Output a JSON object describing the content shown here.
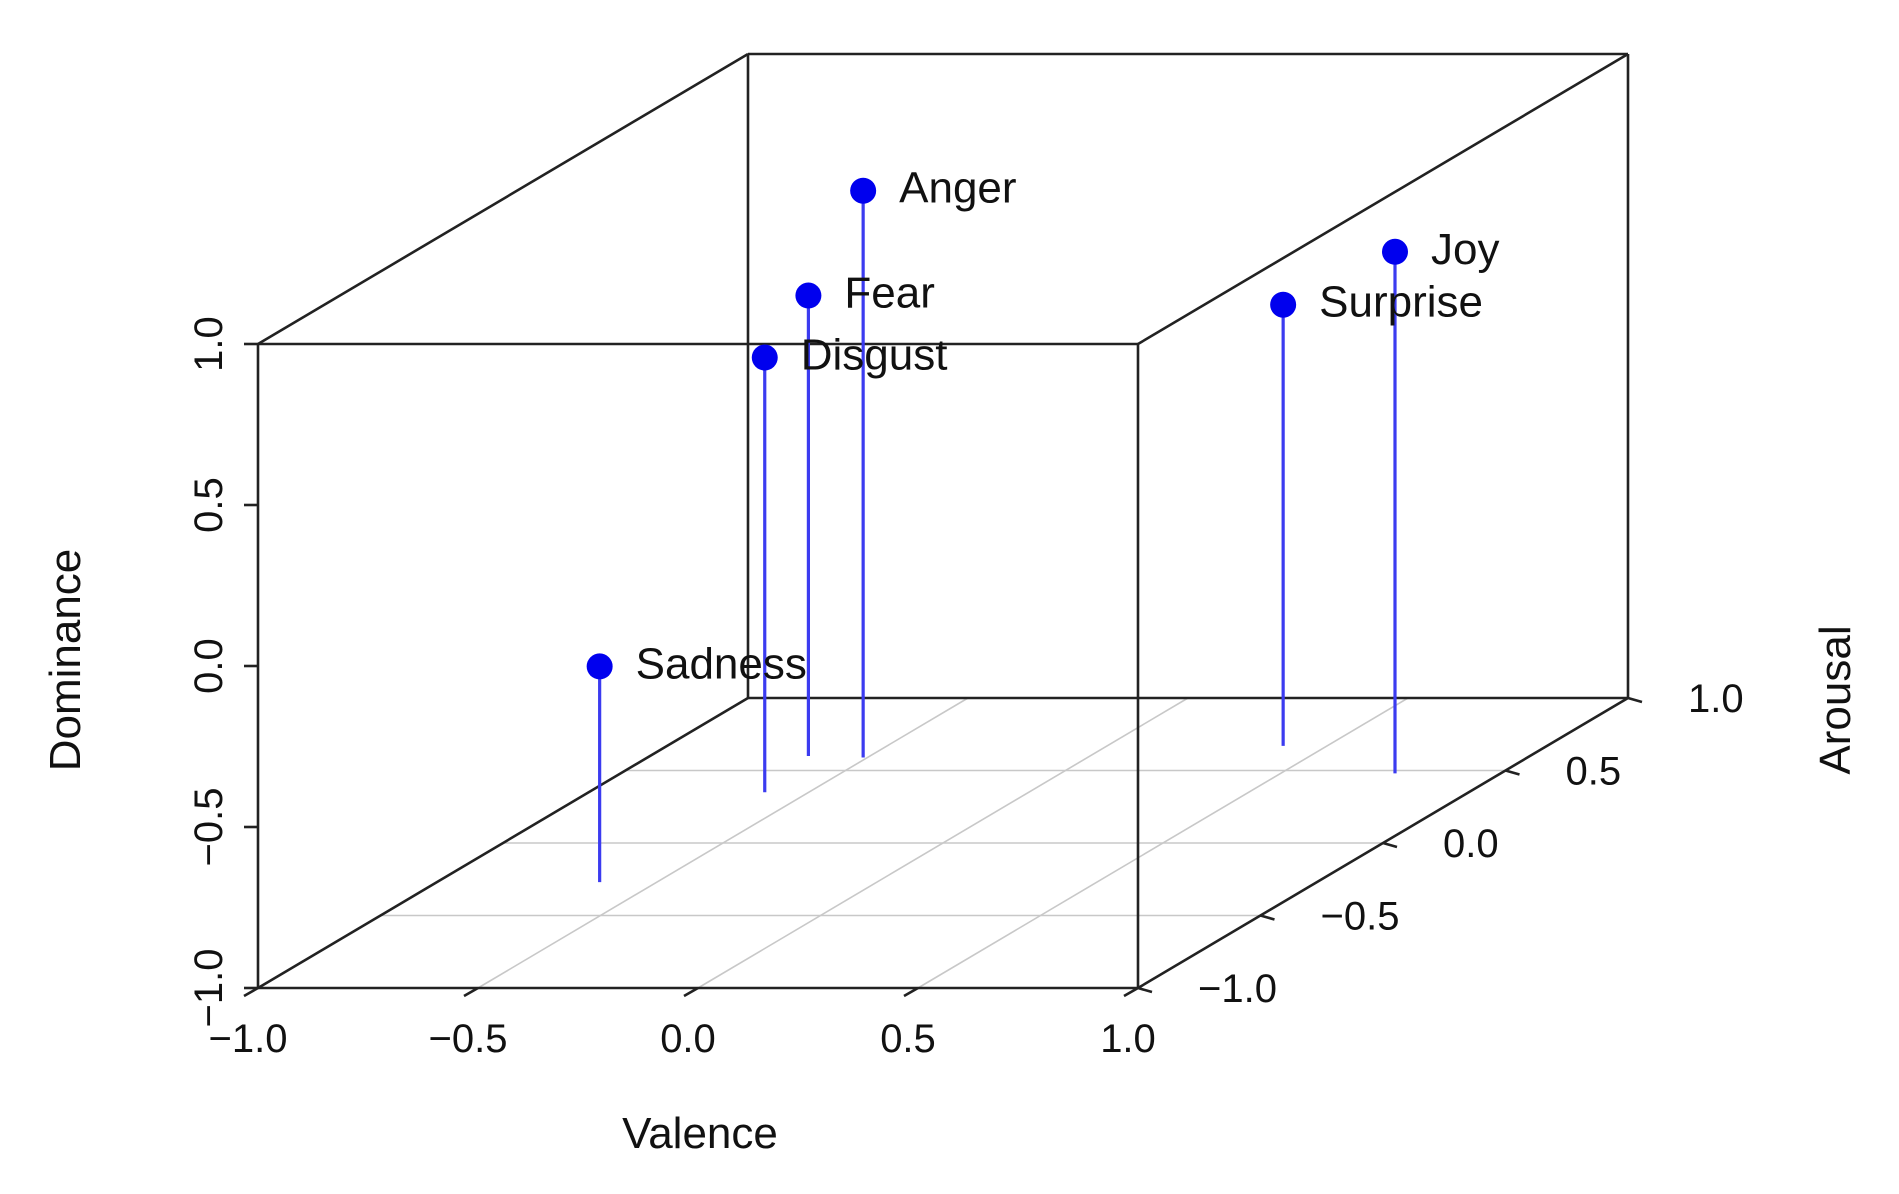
{
  "chart_data": {
    "type": "scatter3d",
    "title": "",
    "xlabel": "Valence",
    "ylabel": "Arousal",
    "zlabel": "Dominance",
    "xlim": [
      -1.0,
      1.0
    ],
    "ylim": [
      -1.0,
      1.0
    ],
    "zlim": [
      -1.0,
      1.0
    ],
    "x_ticks": [
      "−1.0",
      "−0.5",
      "0.0",
      "0.5",
      "1.0"
    ],
    "y_ticks": [
      "−1.0",
      "−0.5",
      "0.0",
      "0.5",
      "1.0"
    ],
    "z_ticks": [
      "−1.0",
      "−0.5",
      "0.0",
      "0.5",
      "1.0"
    ],
    "grid": true,
    "drop_lines": true,
    "point_color": "#0000ee",
    "stem_color": "#3b3bf0",
    "points": [
      {
        "label": "Anger",
        "x": -0.51,
        "y": 0.59,
        "z": 0.76
      },
      {
        "label": "Disgust",
        "x": -0.6,
        "y": 0.35,
        "z": 0.35
      },
      {
        "label": "Fear",
        "x": -0.64,
        "y": 0.6,
        "z": 0.43
      },
      {
        "label": "Sadness",
        "x": -0.63,
        "y": -0.27,
        "z": -0.33
      },
      {
        "label": "Surprise",
        "x": 0.4,
        "y": 0.67,
        "z": 0.37
      },
      {
        "label": "Joy",
        "x": 0.76,
        "y": 0.48,
        "z": 0.62
      }
    ]
  }
}
